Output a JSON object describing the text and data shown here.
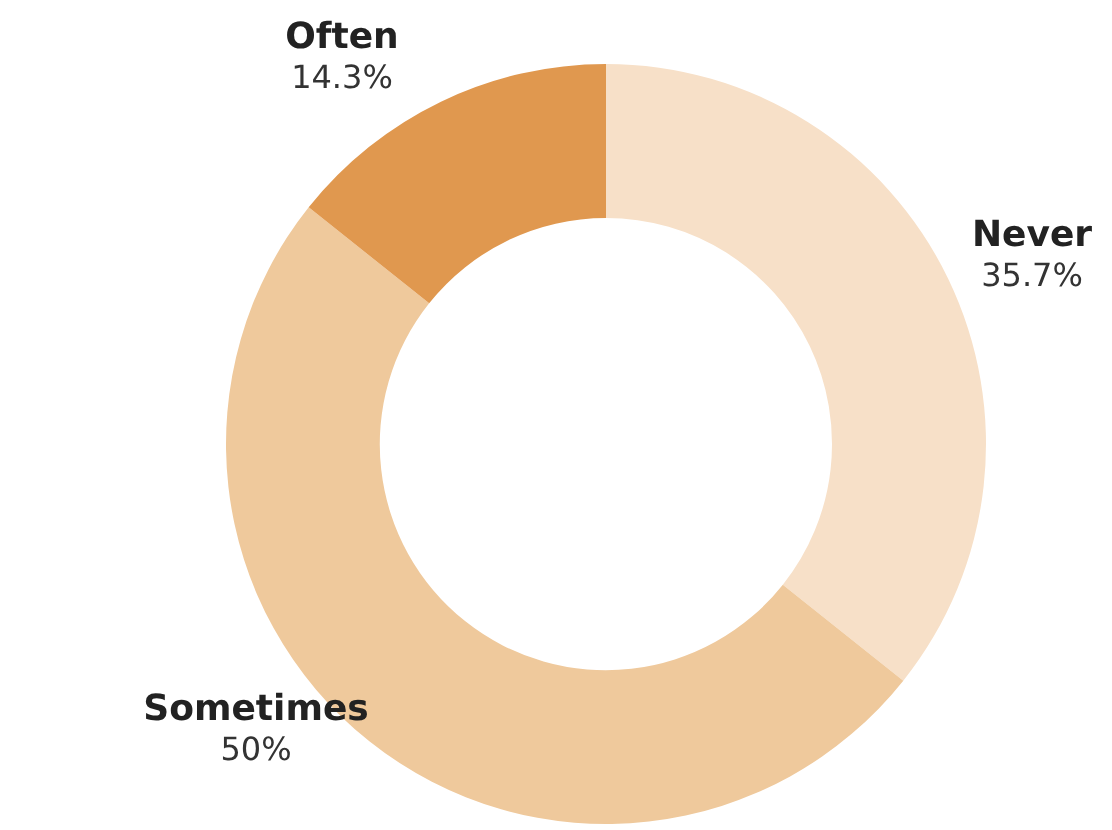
{
  "chart_data": {
    "type": "donut",
    "categories": [
      "Never",
      "Sometimes",
      "Often"
    ],
    "values": [
      35.7,
      50,
      14.3
    ],
    "colors": [
      "#f7e0c8",
      "#efc99c",
      "#e0984f"
    ],
    "value_labels": [
      "35.7%",
      "50%",
      "14.3%"
    ]
  }
}
